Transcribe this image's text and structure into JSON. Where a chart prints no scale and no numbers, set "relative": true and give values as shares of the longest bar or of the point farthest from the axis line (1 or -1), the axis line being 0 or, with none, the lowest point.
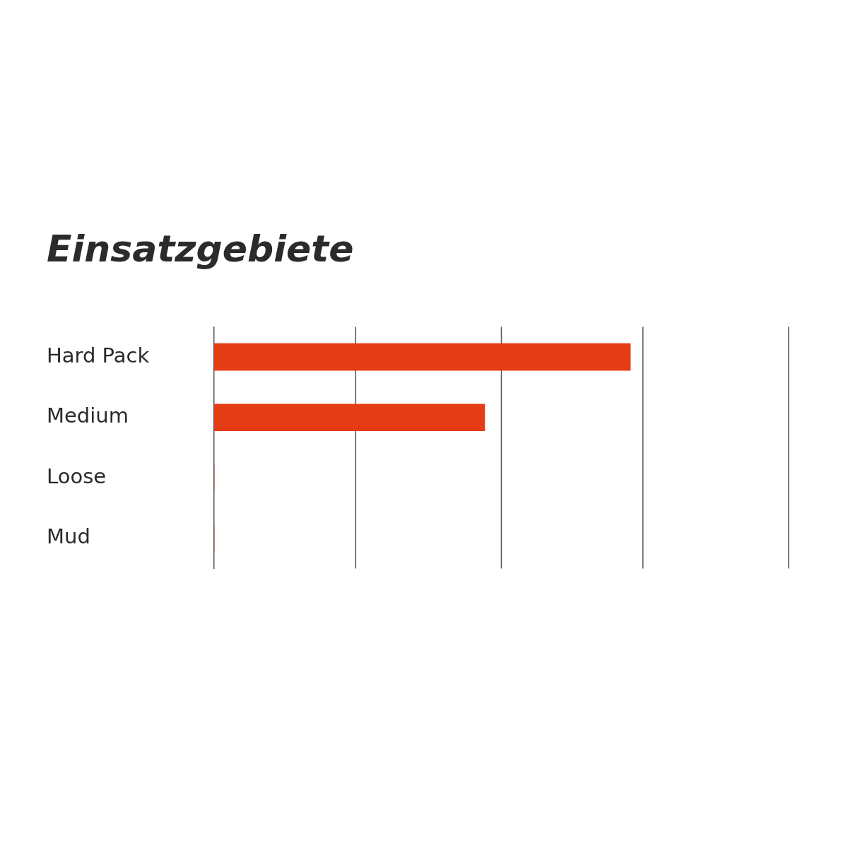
{
  "chart_data": {
    "type": "bar",
    "title": "Einsatzgebiete",
    "orientation": "horizontal",
    "relative": true,
    "categories": [
      "Hard Pack",
      "Medium",
      "Loose",
      "Mud"
    ],
    "values": [
      1,
      0.65,
      0,
      0
    ],
    "color": "#e53c15",
    "ref_lines": [
      {
        "axis": "x",
        "value": 0.34,
        "color": "#555555"
      },
      {
        "axis": "x",
        "value": 0.69,
        "color": "#555555"
      },
      {
        "axis": "x",
        "value": 1.03,
        "color": "#555555"
      },
      {
        "axis": "x",
        "value": 1.38,
        "color": "#555555"
      }
    ]
  }
}
